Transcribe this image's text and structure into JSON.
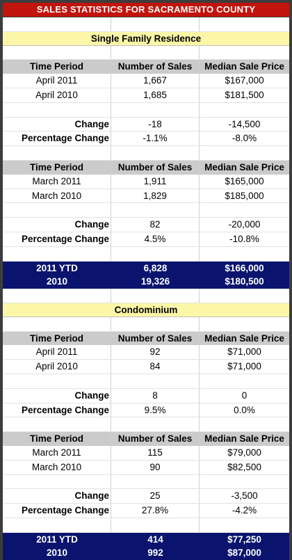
{
  "title": "SALES STATISTICS FOR SACRAMENTO COUNTY",
  "sections": {
    "sfr": {
      "name": "Single Family Residence",
      "april": {
        "header": [
          "Time Period",
          "Number of Sales",
          "Median Sale Price"
        ],
        "rows": [
          [
            "April 2011",
            "1,667",
            "$167,000"
          ],
          [
            "April 2010",
            "1,685",
            "$181,500"
          ]
        ],
        "change": [
          "Change",
          "-18",
          "-14,500"
        ],
        "pct": [
          "Percentage Change",
          "-1.1%",
          "-8.0%"
        ]
      },
      "march": {
        "header": [
          "Time Period",
          "Number of Sales",
          "Median Sale Price"
        ],
        "rows": [
          [
            "March 2011",
            "1,911",
            "$165,000"
          ],
          [
            "March 2010",
            "1,829",
            "$185,000"
          ]
        ],
        "change": [
          "Change",
          "82",
          "-20,000"
        ],
        "pct": [
          "Percentage Change",
          "4.5%",
          "-10.8%"
        ]
      },
      "ytd": [
        [
          "2011 YTD",
          "6,828",
          "$166,000"
        ],
        [
          "2010",
          "19,326",
          "$180,500"
        ]
      ]
    },
    "condo": {
      "name": "Condominium",
      "april": {
        "header": [
          "Time Period",
          "Number of Sales",
          "Median Sale Price"
        ],
        "rows": [
          [
            "April 2011",
            "92",
            "$71,000"
          ],
          [
            "April 2010",
            "84",
            "$71,000"
          ]
        ],
        "change": [
          "Change",
          "8",
          "0"
        ],
        "pct": [
          "Percentage Change",
          "9.5%",
          "0.0%"
        ]
      },
      "march": {
        "header": [
          "Time Period",
          "Number of Sales",
          "Median Sale Price"
        ],
        "rows": [
          [
            "March 2011",
            "115",
            "$79,000"
          ],
          [
            "March 2010",
            "90",
            "$82,500"
          ]
        ],
        "change": [
          "Change",
          "25",
          "-3,500"
        ],
        "pct": [
          "Percentage Change",
          "27.8%",
          "-4.2%"
        ]
      },
      "ytd": [
        [
          "2011 YTD",
          "414",
          "$77,250"
        ],
        [
          "2010",
          "992",
          "$87,000"
        ]
      ]
    }
  }
}
